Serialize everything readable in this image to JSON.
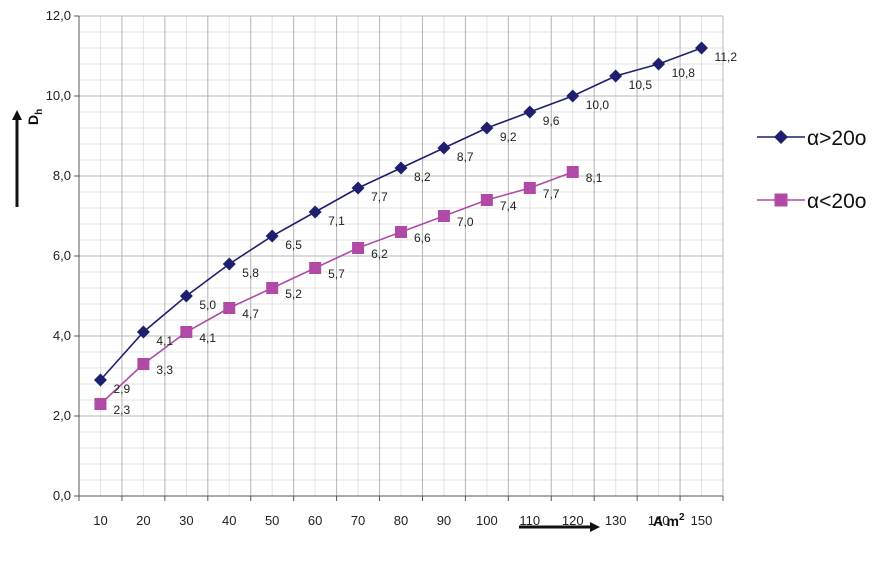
{
  "chart_data": {
    "type": "line",
    "xlabel": "A m²",
    "xlabel_parts": {
      "base": "A m",
      "sup": "2"
    },
    "ylabel": "Dh",
    "ylabel_parts": {
      "base": "D",
      "sub": "h"
    },
    "x": [
      10,
      20,
      30,
      40,
      50,
      60,
      70,
      80,
      90,
      100,
      110,
      120,
      130,
      140,
      150
    ],
    "x_tick_labels": [
      "10",
      "20",
      "30",
      "40",
      "50",
      "60",
      "70",
      "80",
      "90",
      "100",
      "110",
      "120",
      "130",
      "140",
      "150"
    ],
    "ylim": [
      0,
      12
    ],
    "y_ticks": [
      0,
      2,
      4,
      6,
      8,
      10,
      12
    ],
    "y_tick_labels": [
      "0,0",
      "2,0",
      "4,0",
      "6,0",
      "8,0",
      "10,0",
      "12,0"
    ],
    "grid": true,
    "legend_position": "right",
    "series": [
      {
        "name": "α>20o",
        "color": "#1f1f6e",
        "marker": "diamond",
        "x": [
          10,
          20,
          30,
          40,
          50,
          60,
          70,
          80,
          90,
          100,
          110,
          120,
          130,
          140,
          150
        ],
        "values": [
          2.9,
          4.1,
          5.0,
          5.8,
          6.5,
          7.1,
          7.7,
          8.2,
          8.7,
          9.2,
          9.6,
          10.0,
          10.5,
          10.8,
          11.2
        ],
        "labels": [
          "2,9",
          "4,1",
          "5,0",
          "5,8",
          "6,5",
          "7,1",
          "7,7",
          "8,2",
          "8,7",
          "9,2",
          "9,6",
          "10,0",
          "10,5",
          "10,8",
          "11,2"
        ]
      },
      {
        "name": "α<20o",
        "color": "#b04aa6",
        "marker": "square",
        "x": [
          10,
          20,
          30,
          40,
          50,
          60,
          70,
          80,
          90,
          100,
          110,
          120
        ],
        "values": [
          2.3,
          3.3,
          4.1,
          4.7,
          5.2,
          5.7,
          6.2,
          6.6,
          7.0,
          7.4,
          7.7,
          8.1
        ],
        "labels": [
          "2,3",
          "3,3",
          "4,1",
          "4,7",
          "5,2",
          "5,7",
          "6,2",
          "6,6",
          "7,0",
          "7,4",
          "7,7",
          "8,1"
        ]
      }
    ]
  }
}
